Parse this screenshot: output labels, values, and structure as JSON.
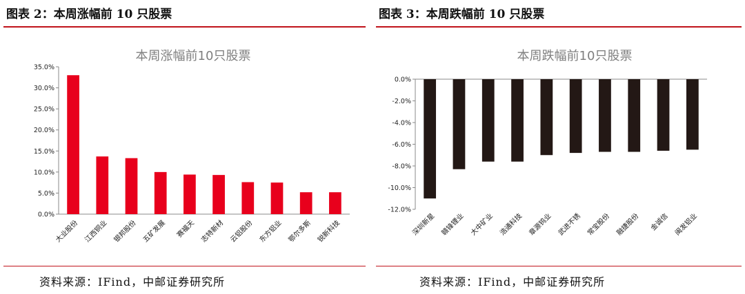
{
  "left": {
    "heading": "图表 2：本周涨幅前 10 只股票",
    "source": "资料来源：IFind，中邮证券研究所"
  },
  "right": {
    "heading": "图表 3：本周跌幅前 10 只股票",
    "source": "资料来源：IFind，中邮证券研究所"
  },
  "colors": {
    "accent": "#c0121a",
    "up_bar": "#e8001c",
    "down_bar": "#231815"
  },
  "chart_data": [
    {
      "type": "bar",
      "title": "本周涨幅前10只股票",
      "categories": [
        "大业股份",
        "江西铜业",
        "银邦股份",
        "五矿发展",
        "赛福天",
        "志特新材",
        "云铝股份",
        "东方铝业",
        "鄂尔多斯",
        "锐新科技"
      ],
      "values": [
        33.0,
        13.7,
        13.3,
        10.0,
        9.4,
        9.3,
        7.6,
        7.5,
        5.2,
        5.2
      ],
      "ylim": [
        0,
        35
      ],
      "yticks": [
        "0.0%",
        "5.0%",
        "10.0%",
        "15.0%",
        "20.0%",
        "25.0%",
        "30.0%",
        "35.0%"
      ],
      "xlabel": "",
      "ylabel": "",
      "unit": "%"
    },
    {
      "type": "bar",
      "title": "本周跌幅前10只股票",
      "categories": [
        "深圳新星",
        "赣锋锂业",
        "大中矿业",
        "浩通科技",
        "章源钨业",
        "武进不锈",
        "常宝股份",
        "融捷股份",
        "金诚信",
        "闽发铝业"
      ],
      "values": [
        -11.0,
        -8.3,
        -7.6,
        -7.6,
        -7.0,
        -6.8,
        -6.7,
        -6.7,
        -6.6,
        -6.5
      ],
      "ylim": [
        -12,
        0
      ],
      "yticks": [
        "0.0%",
        "-2.0%",
        "-4.0%",
        "-6.0%",
        "-8.0%",
        "-10.0%",
        "-12.0%"
      ],
      "xlabel": "",
      "ylabel": "",
      "unit": "%"
    }
  ]
}
